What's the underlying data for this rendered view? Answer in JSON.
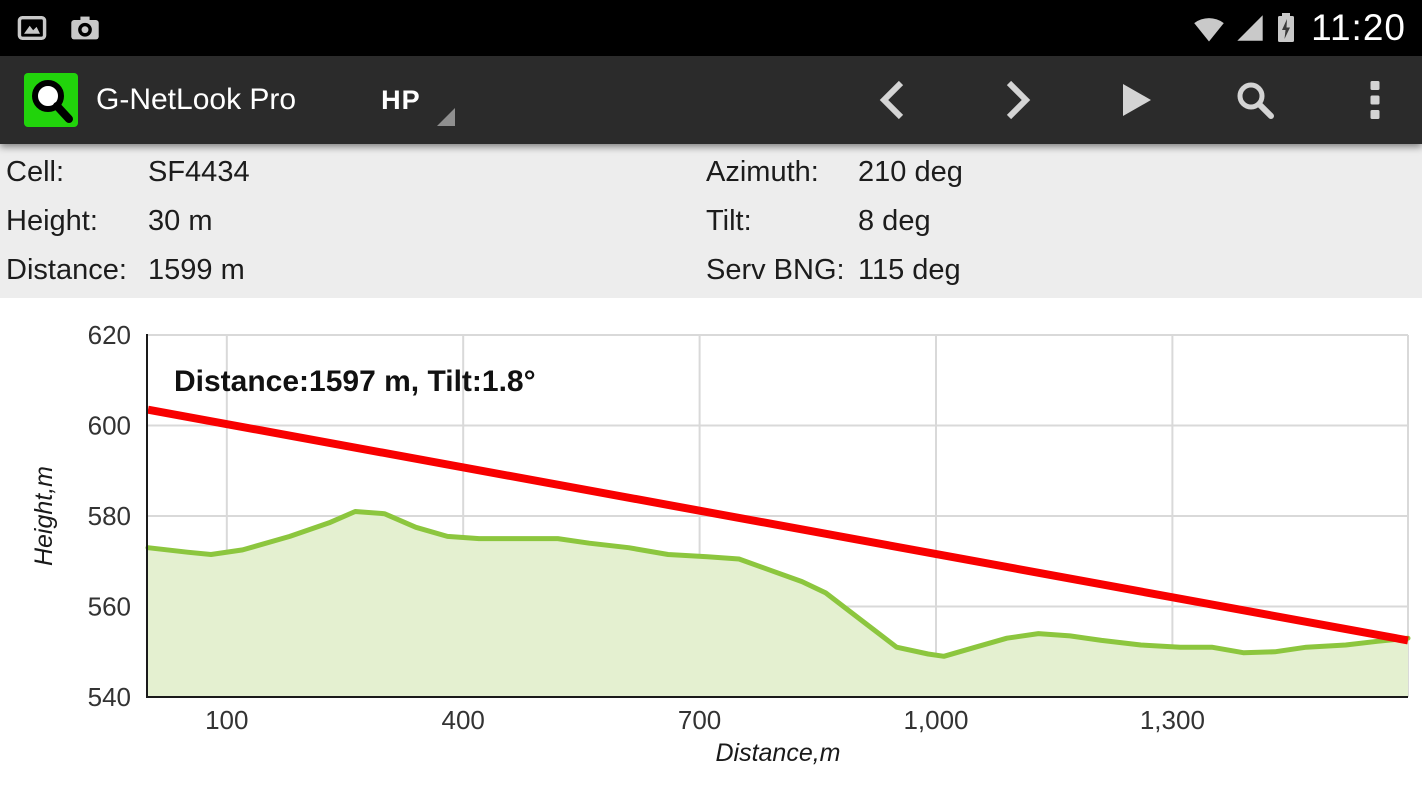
{
  "status_bar": {
    "time": "11:20",
    "icons": [
      "gallery-icon",
      "camera-icon",
      "wifi-icon",
      "signal-strength-icon",
      "battery-charging-icon"
    ]
  },
  "action_bar": {
    "title": "G-NetLook Pro",
    "app_icon": "magnifier-on-green-square",
    "spinner_label": "HP",
    "actions": [
      "previous-icon",
      "next-icon",
      "play-icon",
      "search-icon",
      "overflow-menu-icon"
    ]
  },
  "info_panel": {
    "left": [
      {
        "label": "Cell:",
        "value": "SF4434"
      },
      {
        "label": "Height:",
        "value": "30 m"
      },
      {
        "label": "Distance:",
        "value": "1599 m"
      }
    ],
    "right": [
      {
        "label": "Azimuth:",
        "value": "210 deg"
      },
      {
        "label": "Tilt:",
        "value": "8 deg"
      },
      {
        "label": "Serv BNG:",
        "value": "115 deg"
      }
    ]
  },
  "colors": {
    "app_icon_green": "#21d30b",
    "terrain_stroke": "#8cc63e",
    "terrain_fill": "#e4f0d0",
    "line_of_sight": "#f80000",
    "grid": "#d9d9d9",
    "info_panel_bg": "#ededed"
  },
  "chart_data": {
    "type": "area",
    "title": "",
    "annotation": "Distance:1597 m, Tilt:1.8°",
    "xlabel": "Distance,m",
    "ylabel": "Height,m",
    "xlim": [
      0,
      1599
    ],
    "ylim": [
      540,
      620
    ],
    "x_ticks": [
      100,
      400,
      700,
      1000,
      1300
    ],
    "x_tick_labels": [
      "100",
      "400",
      "700",
      "1,000",
      "1,300"
    ],
    "y_ticks": [
      540,
      560,
      580,
      600,
      620
    ],
    "grid": true,
    "legend": false,
    "series": [
      {
        "name": "terrain-profile",
        "type": "area",
        "stroke": "#8cc63e",
        "fill": "#e4f0d0",
        "x": [
          0,
          50,
          80,
          120,
          180,
          230,
          263,
          300,
          340,
          380,
          420,
          470,
          520,
          560,
          610,
          660,
          710,
          750,
          790,
          830,
          860,
          890,
          920,
          950,
          990,
          1010,
          1050,
          1090,
          1130,
          1170,
          1210,
          1260,
          1310,
          1350,
          1390,
          1430,
          1470,
          1520,
          1560,
          1599
        ],
        "y": [
          573,
          572,
          571.5,
          572.5,
          575.5,
          578.5,
          581,
          580.5,
          577.5,
          575.5,
          575,
          575,
          575,
          574,
          573,
          571.5,
          571,
          570.5,
          568,
          565.5,
          563,
          559,
          555,
          551,
          549.5,
          549,
          551,
          553,
          554,
          553.5,
          552.5,
          551.5,
          551,
          551,
          549.8,
          550,
          551,
          551.5,
          552.3,
          553
        ]
      },
      {
        "name": "line-of-sight",
        "type": "line",
        "stroke": "#f80000",
        "x": [
          0,
          1599
        ],
        "y": [
          603.5,
          552.5
        ]
      }
    ]
  }
}
